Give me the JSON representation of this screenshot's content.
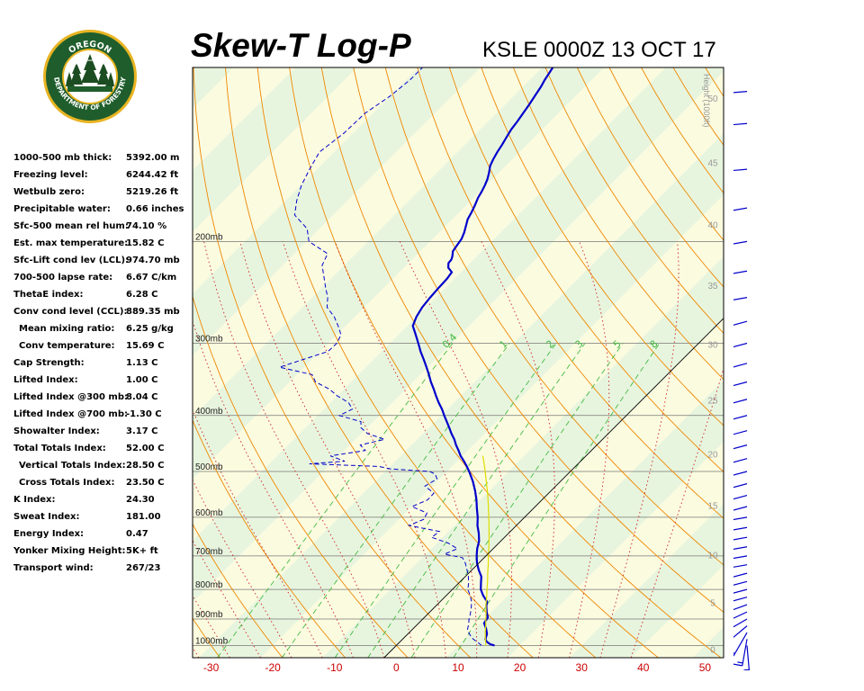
{
  "header": {
    "title": "Skew-T Log-P",
    "station": "KSLE 0000Z 13 OCT 17"
  },
  "logo": {
    "top_text": "OREGON",
    "ring_text": "DEPARTMENT OF FORESTRY",
    "colors": {
      "ring": "#1f5e2c",
      "gold": "#e8b422",
      "trees": "#1c4d22"
    }
  },
  "indices": [
    {
      "label": "1000-500 mb thick:",
      "value": "5392.00 m"
    },
    {
      "label": "Freezing level:",
      "value": "6244.42 ft"
    },
    {
      "label": "Wetbulb zero:",
      "value": "5219.26 ft"
    },
    {
      "label": "Precipitable water:",
      "value": "0.66 inches"
    },
    {
      "label": "Sfc-500 mean rel hum:",
      "value": "74.10 %"
    },
    {
      "label": "Est. max temperature:",
      "value": "15.82 C"
    },
    {
      "label": "Sfc-Lift cond lev (LCL):",
      "value": "974.70 mb"
    },
    {
      "label": "700-500 lapse rate:",
      "value": "6.67 C/km"
    },
    {
      "label": "ThetaE index:",
      "value": "6.28 C"
    },
    {
      "label": "Conv cond level (CCL):",
      "value": "889.35 mb"
    },
    {
      "label": "Mean mixing ratio:",
      "value": "6.25 g/kg",
      "indent": true
    },
    {
      "label": "Conv temperature:",
      "value": "15.69 C",
      "indent": true
    },
    {
      "label": "Cap Strength:",
      "value": "1.13 C"
    },
    {
      "label": "Lifted Index:",
      "value": "1.00 C"
    },
    {
      "label": "Lifted Index @300 mb:",
      "value": "8.04 C"
    },
    {
      "label": "Lifted Index @700 mb:",
      "value": "-1.30 C"
    },
    {
      "label": "Showalter Index:",
      "value": "3.17 C"
    },
    {
      "label": "Total Totals Index:",
      "value": "52.00 C"
    },
    {
      "label": "Vertical Totals Index:",
      "value": "28.50 C",
      "indent": true
    },
    {
      "label": "Cross Totals Index:",
      "value": "23.50 C",
      "indent": true
    },
    {
      "label": "K Index:",
      "value": "24.30"
    },
    {
      "label": "Sweat Index:",
      "value": "181.00"
    },
    {
      "label": "Energy Index:",
      "value": "0.47"
    },
    {
      "label": "Yonker Mixing Height:",
      "value": "5K+ ft"
    },
    {
      "label": "Transport wind:",
      "value": "267/23"
    }
  ],
  "chart_data": {
    "type": "line",
    "x_axis": {
      "label": "",
      "ticks": [
        -30,
        -20,
        -10,
        0,
        10,
        20,
        30,
        40,
        50
      ],
      "range": [
        -33,
        53
      ],
      "tick_color": "#cc0000"
    },
    "y_axis": {
      "scale": "log-pressure",
      "pressure_range_mb": [
        1050,
        100
      ],
      "levels": [
        {
          "p": 1000,
          "label": "1000mb"
        },
        {
          "p": 900,
          "label": "900mb"
        },
        {
          "p": 800,
          "label": "800mb"
        },
        {
          "p": 700,
          "label": "700mb"
        },
        {
          "p": 600,
          "label": "600mb"
        },
        {
          "p": 500,
          "label": "500mb"
        },
        {
          "p": 400,
          "label": "400mb"
        },
        {
          "p": 300,
          "label": "300mb"
        },
        {
          "p": 200,
          "label": "200mb"
        }
      ]
    },
    "height_axis": {
      "label": "Height (1000ft)",
      "ticks": [
        0,
        5,
        10,
        15,
        20,
        25,
        30,
        35,
        40,
        45,
        50
      ],
      "tick_pressures_mb": [
        1015,
        842,
        697,
        572,
        466,
        376,
        301,
        238,
        187,
        146,
        113
      ]
    },
    "mixing_ratio_lines": {
      "labels": [
        "0.4",
        "1",
        "2",
        "3",
        "5",
        "8"
      ],
      "values": [
        0.4,
        1,
        2,
        3,
        5,
        8
      ],
      "color": "#44bb44"
    },
    "isotherm_skew": "45deg",
    "colors": {
      "dry_adiabat": "#ee8800",
      "moist_adiabat": "#cc2222",
      "temperature": "#0000cc",
      "dewpoint": "#0000cc",
      "parcel": "#dddd00",
      "plot_bg_a": "#fbfbe0",
      "plot_bg_b": "#e8f5de"
    },
    "series": [
      {
        "name": "Temperature",
        "style": "solid",
        "p": [
          1000,
          995,
          985,
          975,
          955,
          935,
          915,
          895,
          875,
          855,
          840,
          820,
          800,
          780,
          760,
          740,
          720,
          700,
          680,
          660,
          640,
          620,
          600,
          580,
          560,
          540,
          520,
          500,
          490,
          480,
          470,
          460,
          450,
          440,
          430,
          420,
          410,
          400,
          390,
          380,
          370,
          360,
          350,
          340,
          330,
          320,
          310,
          300,
          290,
          280,
          270,
          260,
          250,
          240,
          232,
          226,
          222,
          218,
          215,
          212,
          208,
          203,
          198,
          193,
          188,
          183,
          178,
          173,
          168,
          164,
          160,
          156,
          152,
          148,
          144,
          140,
          136,
          132,
          128,
          124,
          120,
          116,
          112,
          108,
          105,
          102,
          100
        ],
        "T": [
          15.9,
          15.0,
          14.0,
          13.4,
          12.8,
          11.8,
          10.6,
          10.3,
          9.2,
          8.2,
          7.6,
          6.0,
          4.6,
          3.6,
          2.6,
          1.1,
          -0.3,
          -1.5,
          -2.6,
          -3.5,
          -4.8,
          -6.3,
          -7.6,
          -9.1,
          -10.6,
          -12.3,
          -14.2,
          -16.4,
          -17.6,
          -18.9,
          -20.3,
          -21.5,
          -22.8,
          -24.0,
          -25.4,
          -26.7,
          -28.1,
          -29.5,
          -30.9,
          -32.5,
          -34.0,
          -35.5,
          -37.1,
          -38.6,
          -40.2,
          -41.9,
          -43.7,
          -45.4,
          -47.2,
          -49.1,
          -50.0,
          -50.6,
          -50.9,
          -51.1,
          -51.2,
          -51.5,
          -52.8,
          -53.5,
          -53.6,
          -54.0,
          -54.7,
          -55.0,
          -55.3,
          -55.9,
          -56.7,
          -57.5,
          -58.0,
          -58.6,
          -59.3,
          -59.7,
          -60.2,
          -60.8,
          -61.6,
          -62.5,
          -63.1,
          -63.6,
          -64.0,
          -64.5,
          -65.0,
          -65.3,
          -65.7,
          -66.1,
          -66.6,
          -67.1,
          -67.6,
          -68.0,
          -68.3
        ]
      },
      {
        "name": "Dewpoint",
        "style": "dashed",
        "p": [
          1000,
          990,
          975,
          960,
          940,
          920,
          900,
          880,
          860,
          840,
          820,
          800,
          780,
          760,
          740,
          720,
          705,
          695,
          680,
          665,
          650,
          635,
          620,
          605,
          590,
          575,
          560,
          545,
          530,
          515,
          505,
          500,
          495,
          490,
          485,
          480,
          470,
          460,
          450,
          440,
          430,
          420,
          410,
          400,
          390,
          380,
          370,
          360,
          350,
          340,
          330,
          320,
          310,
          300,
          290,
          280,
          270,
          260,
          250,
          240,
          230,
          220,
          210,
          200,
          190,
          180,
          170,
          160,
          150,
          140,
          130,
          120,
          112,
          105,
          100
        ],
        "Td": [
          13.8,
          12.9,
          11.4,
          10.3,
          9.0,
          8.3,
          7.5,
          6.8,
          6.0,
          5.1,
          3.9,
          2.5,
          1.6,
          0.5,
          -0.8,
          -2.2,
          -3.5,
          -7.0,
          -5.8,
          -8.2,
          -11.8,
          -11.5,
          -17.4,
          -16.0,
          -16.5,
          -20.0,
          -18.5,
          -18.6,
          -21.2,
          -20.4,
          -21.5,
          -22.8,
          -29.5,
          -31.9,
          -43.5,
          -38.2,
          -41.4,
          -36.6,
          -38.3,
          -35.3,
          -39.0,
          -41.0,
          -42.0,
          -46.5,
          -45.4,
          -47.1,
          -50.0,
          -52.4,
          -55.8,
          -57.5,
          -64.0,
          -61.4,
          -58.7,
          -58.6,
          -59.3,
          -61.2,
          -63.3,
          -66.0,
          -67.5,
          -69.5,
          -71.5,
          -73.6,
          -74.6,
          -79.6,
          -82.0,
          -86.2,
          -88.2,
          -89.9,
          -91.2,
          -92.4,
          -91.5,
          -91.3,
          -90.0,
          -89.4,
          -89.4
        ]
      },
      {
        "name": "Parcel",
        "style": "thin",
        "p": [
          1000,
          975,
          950,
          925,
          900,
          875,
          850,
          825,
          800,
          775,
          750,
          725,
          700,
          675,
          650,
          625,
          600,
          575,
          550,
          525,
          500,
          480,
          470
        ],
        "T": [
          14.5,
          13.4,
          12.3,
          11.3,
          10.2,
          9.1,
          7.9,
          6.8,
          5.6,
          4.4,
          3.1,
          1.8,
          0.4,
          -1.0,
          -2.5,
          -4.1,
          -5.8,
          -7.6,
          -9.5,
          -11.6,
          -13.8,
          -15.7,
          -16.7
        ]
      },
      {
        "name": "Reference isotherm",
        "style": "thin-black",
        "p": [
          1050,
          100
        ],
        "T": [
          0,
          0
        ]
      }
    ],
    "wind_barbs": {
      "color": "#0000cc",
      "levels": [
        {
          "p": 1000,
          "dir": 175,
          "spd": 15
        },
        {
          "p": 975,
          "dir": 190,
          "spd": 15
        },
        {
          "p": 950,
          "dir": 210,
          "spd": 15
        },
        {
          "p": 925,
          "dir": 230,
          "spd": 20
        },
        {
          "p": 900,
          "dir": 240,
          "spd": 25
        },
        {
          "p": 875,
          "dir": 245,
          "spd": 30
        },
        {
          "p": 850,
          "dir": 250,
          "spd": 30
        },
        {
          "p": 825,
          "dir": 255,
          "spd": 35
        },
        {
          "p": 800,
          "dir": 255,
          "spd": 40
        },
        {
          "p": 775,
          "dir": 255,
          "spd": 40
        },
        {
          "p": 750,
          "dir": 255,
          "spd": 40
        },
        {
          "p": 725,
          "dir": 260,
          "spd": 45
        },
        {
          "p": 700,
          "dir": 260,
          "spd": 45
        },
        {
          "p": 675,
          "dir": 260,
          "spd": 45
        },
        {
          "p": 650,
          "dir": 260,
          "spd": 45
        },
        {
          "p": 625,
          "dir": 260,
          "spd": 45
        },
        {
          "p": 600,
          "dir": 260,
          "spd": 45
        },
        {
          "p": 575,
          "dir": 255,
          "spd": 50
        },
        {
          "p": 550,
          "dir": 255,
          "spd": 55
        },
        {
          "p": 525,
          "dir": 255,
          "spd": 55
        },
        {
          "p": 500,
          "dir": 255,
          "spd": 60
        },
        {
          "p": 475,
          "dir": 255,
          "spd": 65
        },
        {
          "p": 450,
          "dir": 255,
          "spd": 70
        },
        {
          "p": 425,
          "dir": 255,
          "spd": 70
        },
        {
          "p": 400,
          "dir": 255,
          "spd": 75
        },
        {
          "p": 375,
          "dir": 255,
          "spd": 75
        },
        {
          "p": 350,
          "dir": 255,
          "spd": 75
        },
        {
          "p": 325,
          "dir": 255,
          "spd": 70
        },
        {
          "p": 300,
          "dir": 255,
          "spd": 70
        },
        {
          "p": 275,
          "dir": 255,
          "spd": 70
        },
        {
          "p": 250,
          "dir": 260,
          "spd": 70
        },
        {
          "p": 225,
          "dir": 260,
          "spd": 70
        },
        {
          "p": 200,
          "dir": 260,
          "spd": 65
        },
        {
          "p": 175,
          "dir": 260,
          "spd": 55
        },
        {
          "p": 150,
          "dir": 265,
          "spd": 45
        },
        {
          "p": 125,
          "dir": 265,
          "spd": 35
        },
        {
          "p": 110,
          "dir": 265,
          "spd": 30
        }
      ]
    }
  }
}
